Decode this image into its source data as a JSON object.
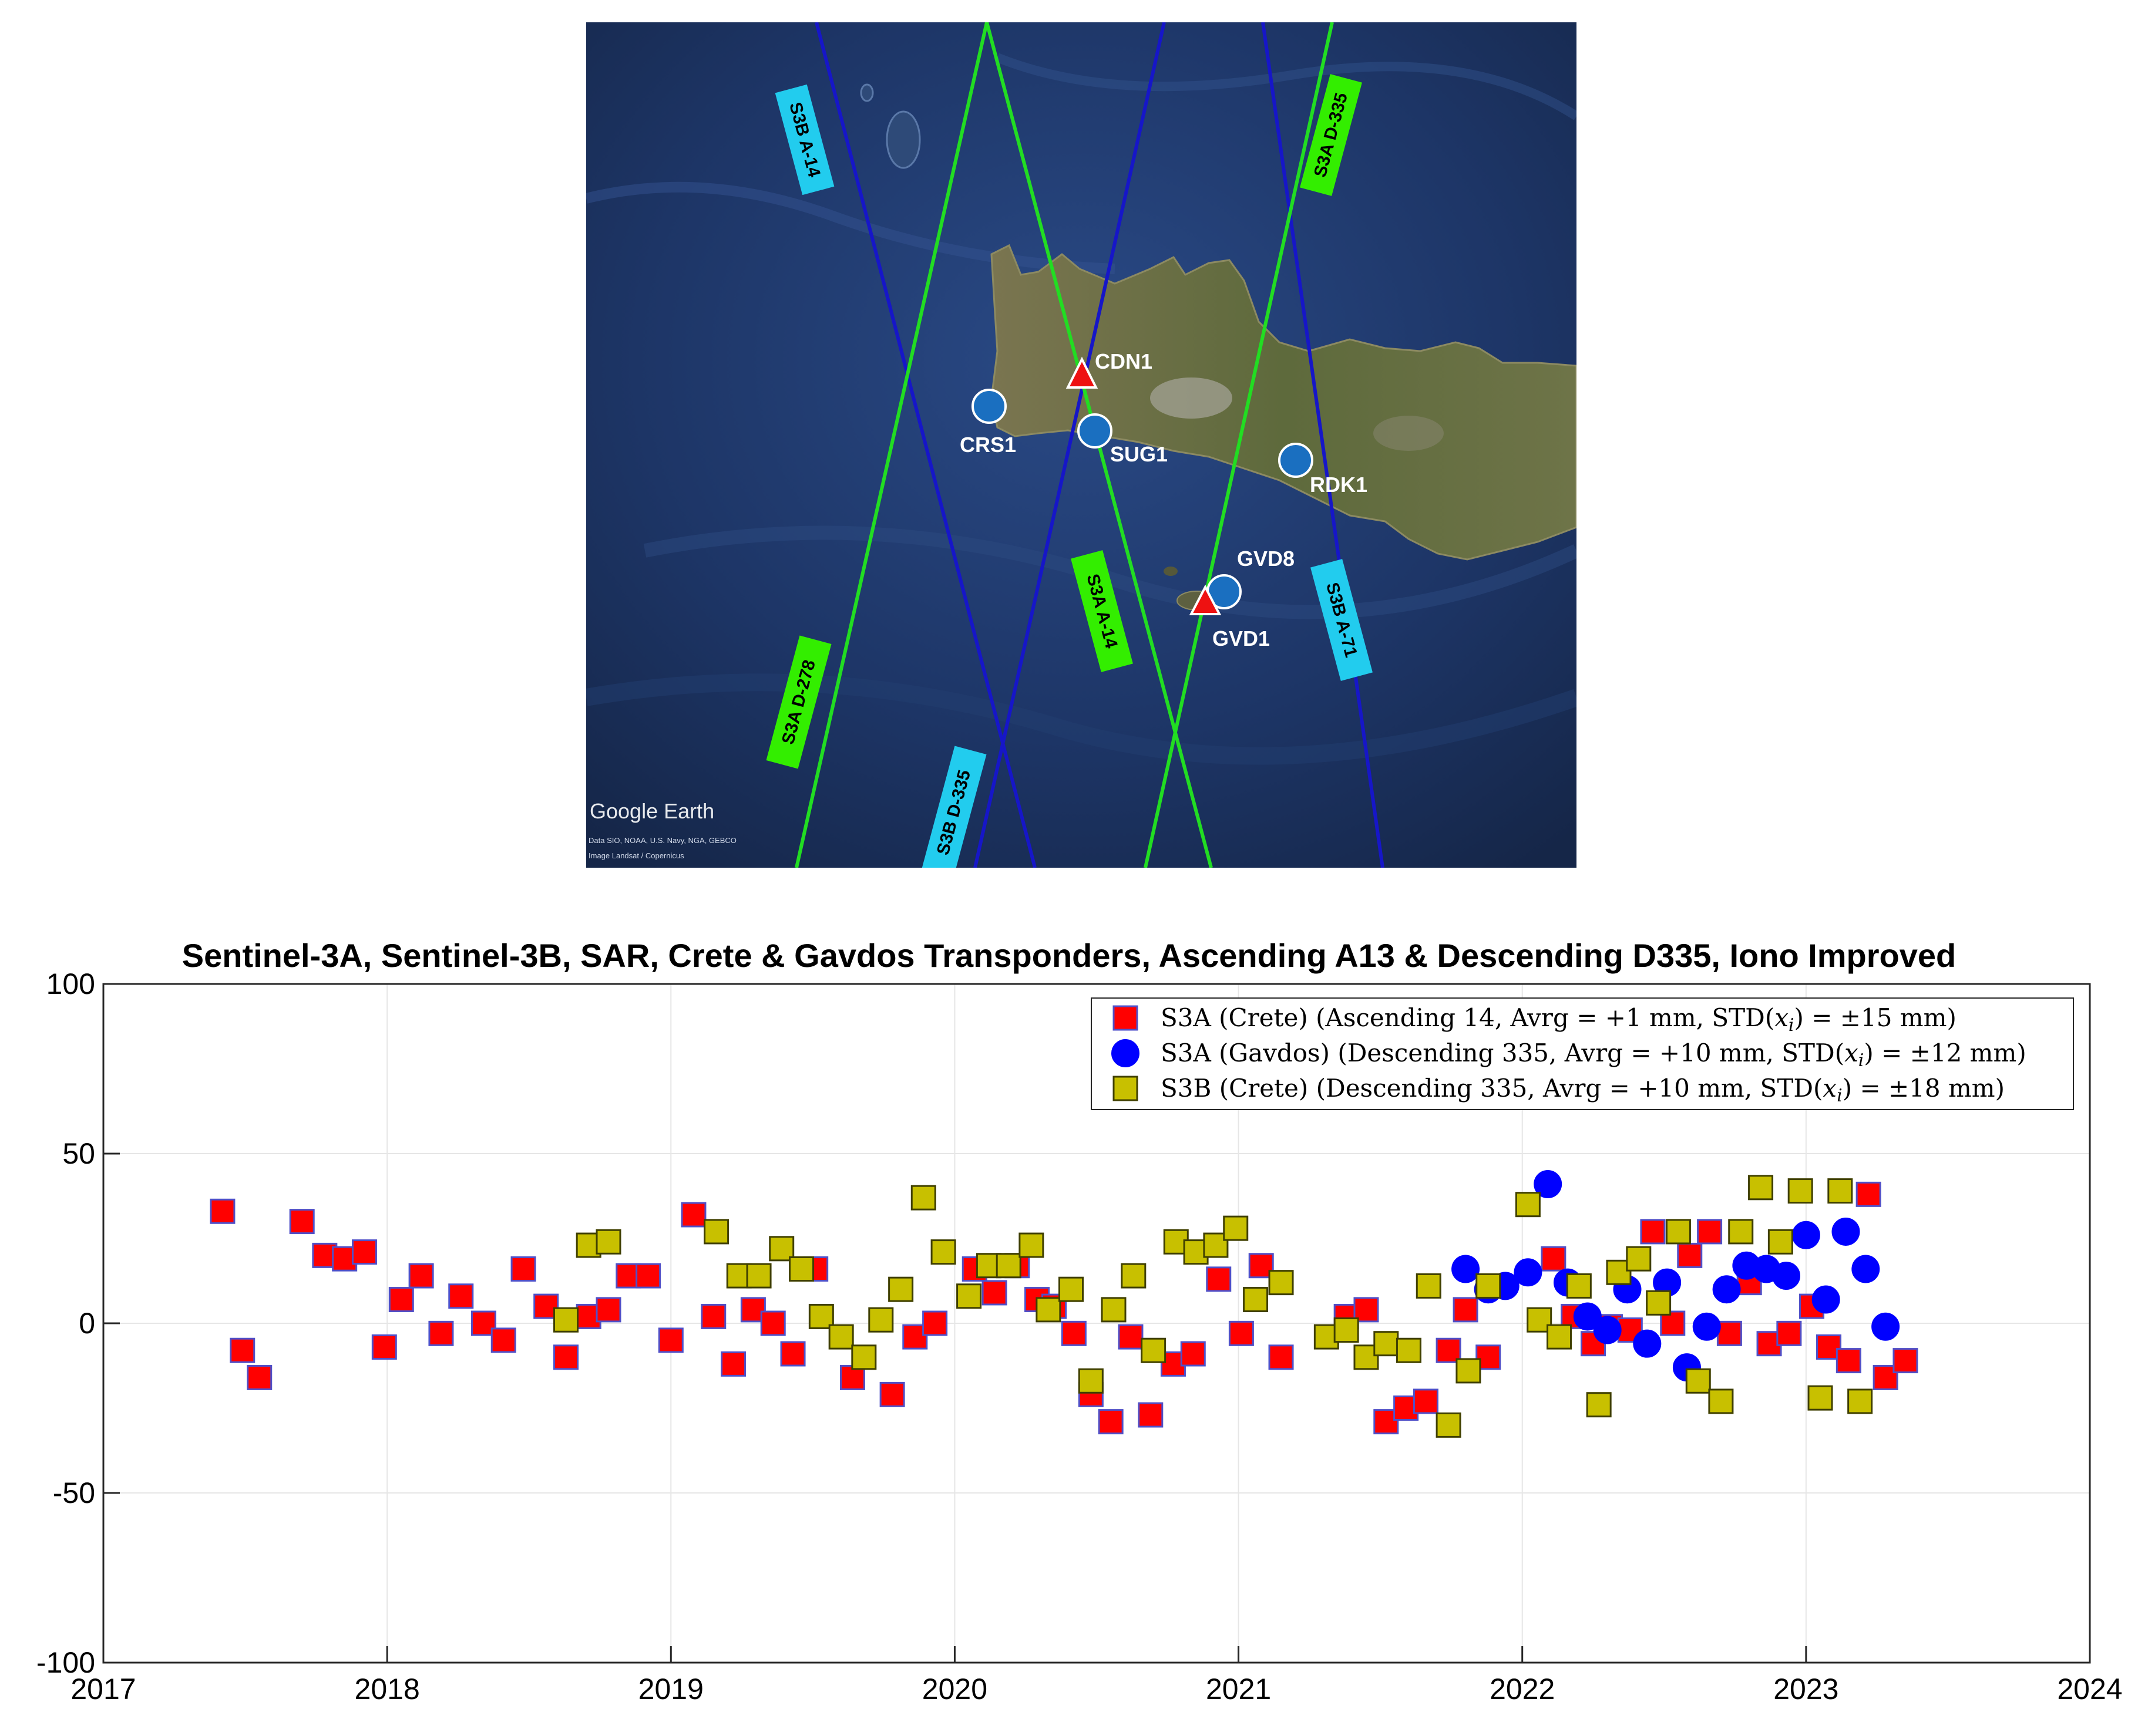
{
  "map": {
    "watermark": "Google Earth",
    "attribution_1": "Data SIO, NOAA, U.S. Navy, NGA, GEBCO",
    "attribution_2": "Image Landsat / Copernicus",
    "colors": {
      "sea": "#1d3566",
      "land": "#6b6a48",
      "s3a_track": "#22dd22",
      "s3b_track": "#1616c8",
      "s3a_tag": "#33ee00",
      "s3b_tag": "#22ccee",
      "station": "#1a6fc0",
      "transponder": "#ee1111"
    },
    "track_labels": [
      {
        "id": "s3b-a14",
        "text": "S3B A-14",
        "mission": "S3B"
      },
      {
        "id": "s3a-d335",
        "text": "S3A D-335",
        "mission": "S3A"
      },
      {
        "id": "s3a-a14",
        "text": "S3A A-14",
        "mission": "S3A"
      },
      {
        "id": "s3b-a71",
        "text": "S3B A-71",
        "mission": "S3B"
      },
      {
        "id": "s3a-d278",
        "text": "S3A D-278",
        "mission": "S3A"
      },
      {
        "id": "s3b-d335",
        "text": "S3B D-335",
        "mission": "S3B"
      }
    ],
    "stations": [
      {
        "id": "CRS1",
        "type": "gnss-station"
      },
      {
        "id": "SUG1",
        "type": "gnss-station"
      },
      {
        "id": "RDK1",
        "type": "gnss-station"
      },
      {
        "id": "GVD8",
        "type": "gnss-station"
      },
      {
        "id": "CDN1",
        "type": "transponder"
      },
      {
        "id": "GVD1",
        "type": "transponder"
      }
    ]
  },
  "chart_data": {
    "type": "scatter",
    "title": "Sentinel-3A, Sentinel-3B,  SAR, Crete & Gavdos Transponders, Ascending A13 & Descending D335, Iono Improved",
    "xlabel": "",
    "ylabel": "",
    "xlim": [
      2017,
      2024
    ],
    "ylim": [
      -100,
      100
    ],
    "xticks": [
      "2017",
      "2018",
      "2019",
      "2020",
      "2021",
      "2022",
      "2023",
      "2024"
    ],
    "yticks": [
      "100",
      "50",
      "0",
      "-50",
      "-100"
    ],
    "grid": true,
    "legend_position": "top-right",
    "series": [
      {
        "name": "S3A (Crete) (Ascending 14, Avrg = +1 mm, STD(xi) = ±15 mm)",
        "legend_parts": {
          "pre": "S3A (Crete) (Ascending 14, Avrg = +1 mm, STD(",
          "var": "x",
          "sub": "i",
          "post": ") = ±15 mm)"
        },
        "marker": "square",
        "color": "#ff0000",
        "edge": "#5050c8",
        "points": [
          [
            2017.42,
            33
          ],
          [
            2017.49,
            -8
          ],
          [
            2017.55,
            -16
          ],
          [
            2017.7,
            30
          ],
          [
            2017.78,
            20
          ],
          [
            2017.85,
            19
          ],
          [
            2017.92,
            21
          ],
          [
            2017.99,
            -7
          ],
          [
            2018.05,
            7
          ],
          [
            2018.12,
            14
          ],
          [
            2018.19,
            -3
          ],
          [
            2018.26,
            8
          ],
          [
            2018.34,
            0
          ],
          [
            2018.41,
            -5
          ],
          [
            2018.48,
            16
          ],
          [
            2018.56,
            5
          ],
          [
            2018.63,
            -10
          ],
          [
            2018.71,
            2
          ],
          [
            2018.78,
            4
          ],
          [
            2018.85,
            14
          ],
          [
            2018.92,
            14
          ],
          [
            2019.0,
            -5
          ],
          [
            2019.08,
            32
          ],
          [
            2019.15,
            2
          ],
          [
            2019.22,
            -12
          ],
          [
            2019.29,
            4
          ],
          [
            2019.36,
            0
          ],
          [
            2019.43,
            -9
          ],
          [
            2019.51,
            16
          ],
          [
            2019.64,
            -16
          ],
          [
            2019.78,
            -21
          ],
          [
            2019.86,
            -4
          ],
          [
            2019.93,
            0
          ],
          [
            2020.07,
            16
          ],
          [
            2020.14,
            9
          ],
          [
            2020.22,
            17
          ],
          [
            2020.29,
            7
          ],
          [
            2020.35,
            5
          ],
          [
            2020.42,
            -3
          ],
          [
            2020.48,
            -21
          ],
          [
            2020.55,
            -29
          ],
          [
            2020.62,
            -4
          ],
          [
            2020.69,
            -27
          ],
          [
            2020.77,
            -12
          ],
          [
            2020.84,
            -9
          ],
          [
            2020.93,
            13
          ],
          [
            2021.01,
            -3
          ],
          [
            2021.08,
            17
          ],
          [
            2021.15,
            -10
          ],
          [
            2021.38,
            2
          ],
          [
            2021.45,
            4
          ],
          [
            2021.52,
            -29
          ],
          [
            2021.59,
            -25
          ],
          [
            2021.66,
            -23
          ],
          [
            2021.74,
            -8
          ],
          [
            2021.8,
            4
          ],
          [
            2021.88,
            -10
          ],
          [
            2022.11,
            19
          ],
          [
            2022.18,
            2
          ],
          [
            2022.25,
            -6
          ],
          [
            2022.31,
            -1
          ],
          [
            2022.38,
            -2
          ],
          [
            2022.46,
            27
          ],
          [
            2022.53,
            0
          ],
          [
            2022.59,
            20
          ],
          [
            2022.66,
            27
          ],
          [
            2022.73,
            -3
          ],
          [
            2022.8,
            12
          ],
          [
            2022.87,
            -6
          ],
          [
            2022.94,
            -3
          ],
          [
            2023.02,
            5
          ],
          [
            2023.08,
            -7
          ],
          [
            2023.15,
            -11
          ],
          [
            2023.22,
            38
          ],
          [
            2023.28,
            -16
          ],
          [
            2023.35,
            -11
          ]
        ]
      },
      {
        "name": "S3A (Gavdos) (Descending 335, Avrg = +10 mm, STD(xi) = ±12 mm)",
        "legend_parts": {
          "pre": "S3A (Gavdos) (Descending 335, Avrg = +10 mm, STD(",
          "var": "x",
          "sub": "i",
          "post": ") = ±12 mm)"
        },
        "marker": "circle",
        "color": "#0000ff",
        "edge": "#0000ff",
        "points": [
          [
            2021.8,
            16
          ],
          [
            2021.88,
            10
          ],
          [
            2021.94,
            11
          ],
          [
            2022.02,
            15
          ],
          [
            2022.09,
            41
          ],
          [
            2022.16,
            12
          ],
          [
            2022.23,
            2
          ],
          [
            2022.3,
            -2
          ],
          [
            2022.37,
            10
          ],
          [
            2022.44,
            -6
          ],
          [
            2022.51,
            12
          ],
          [
            2022.58,
            -13
          ],
          [
            2022.65,
            -1
          ],
          [
            2022.72,
            10
          ],
          [
            2022.79,
            17
          ],
          [
            2022.86,
            16
          ],
          [
            2022.93,
            14
          ],
          [
            2023.0,
            26
          ],
          [
            2023.07,
            7
          ],
          [
            2023.14,
            27
          ],
          [
            2023.21,
            16
          ],
          [
            2023.28,
            -1
          ]
        ]
      },
      {
        "name": "S3B (Crete) (Descending 335, Avrg = +10 mm, STD(xi) = ±18 mm)",
        "legend_parts": {
          "pre": "S3B (Crete) (Descending 335, Avrg = +10 mm, STD(",
          "var": "x",
          "sub": "i",
          "post": ") = ±18 mm)"
        },
        "marker": "square",
        "color": "#c8c000",
        "edge": "#404000",
        "points": [
          [
            2018.63,
            1
          ],
          [
            2018.71,
            23
          ],
          [
            2018.78,
            24
          ],
          [
            2019.16,
            27
          ],
          [
            2019.24,
            14
          ],
          [
            2019.31,
            14
          ],
          [
            2019.39,
            22
          ],
          [
            2019.46,
            16
          ],
          [
            2019.53,
            2
          ],
          [
            2019.6,
            -4
          ],
          [
            2019.68,
            -10
          ],
          [
            2019.74,
            1
          ],
          [
            2019.81,
            10
          ],
          [
            2019.89,
            37
          ],
          [
            2019.96,
            21
          ],
          [
            2020.05,
            8
          ],
          [
            2020.12,
            17
          ],
          [
            2020.19,
            17
          ],
          [
            2020.27,
            23
          ],
          [
            2020.33,
            4
          ],
          [
            2020.41,
            10
          ],
          [
            2020.48,
            -17
          ],
          [
            2020.56,
            4
          ],
          [
            2020.63,
            14
          ],
          [
            2020.7,
            -8
          ],
          [
            2020.78,
            24
          ],
          [
            2020.85,
            21
          ],
          [
            2020.92,
            23
          ],
          [
            2020.99,
            28
          ],
          [
            2021.06,
            7
          ],
          [
            2021.15,
            12
          ],
          [
            2021.31,
            -4
          ],
          [
            2021.38,
            -2
          ],
          [
            2021.45,
            -10
          ],
          [
            2021.52,
            -6
          ],
          [
            2021.6,
            -8
          ],
          [
            2021.67,
            11
          ],
          [
            2021.74,
            -30
          ],
          [
            2021.81,
            -14
          ],
          [
            2021.88,
            11
          ],
          [
            2022.02,
            35
          ],
          [
            2022.06,
            1
          ],
          [
            2022.13,
            -4
          ],
          [
            2022.2,
            11
          ],
          [
            2022.27,
            -24
          ],
          [
            2022.34,
            15
          ],
          [
            2022.41,
            19
          ],
          [
            2022.48,
            6
          ],
          [
            2022.55,
            27
          ],
          [
            2022.62,
            -17
          ],
          [
            2022.7,
            -23
          ],
          [
            2022.77,
            27
          ],
          [
            2022.84,
            40
          ],
          [
            2022.91,
            24
          ],
          [
            2022.98,
            39
          ],
          [
            2023.05,
            -22
          ],
          [
            2023.12,
            39
          ],
          [
            2023.19,
            -23
          ]
        ]
      }
    ]
  }
}
